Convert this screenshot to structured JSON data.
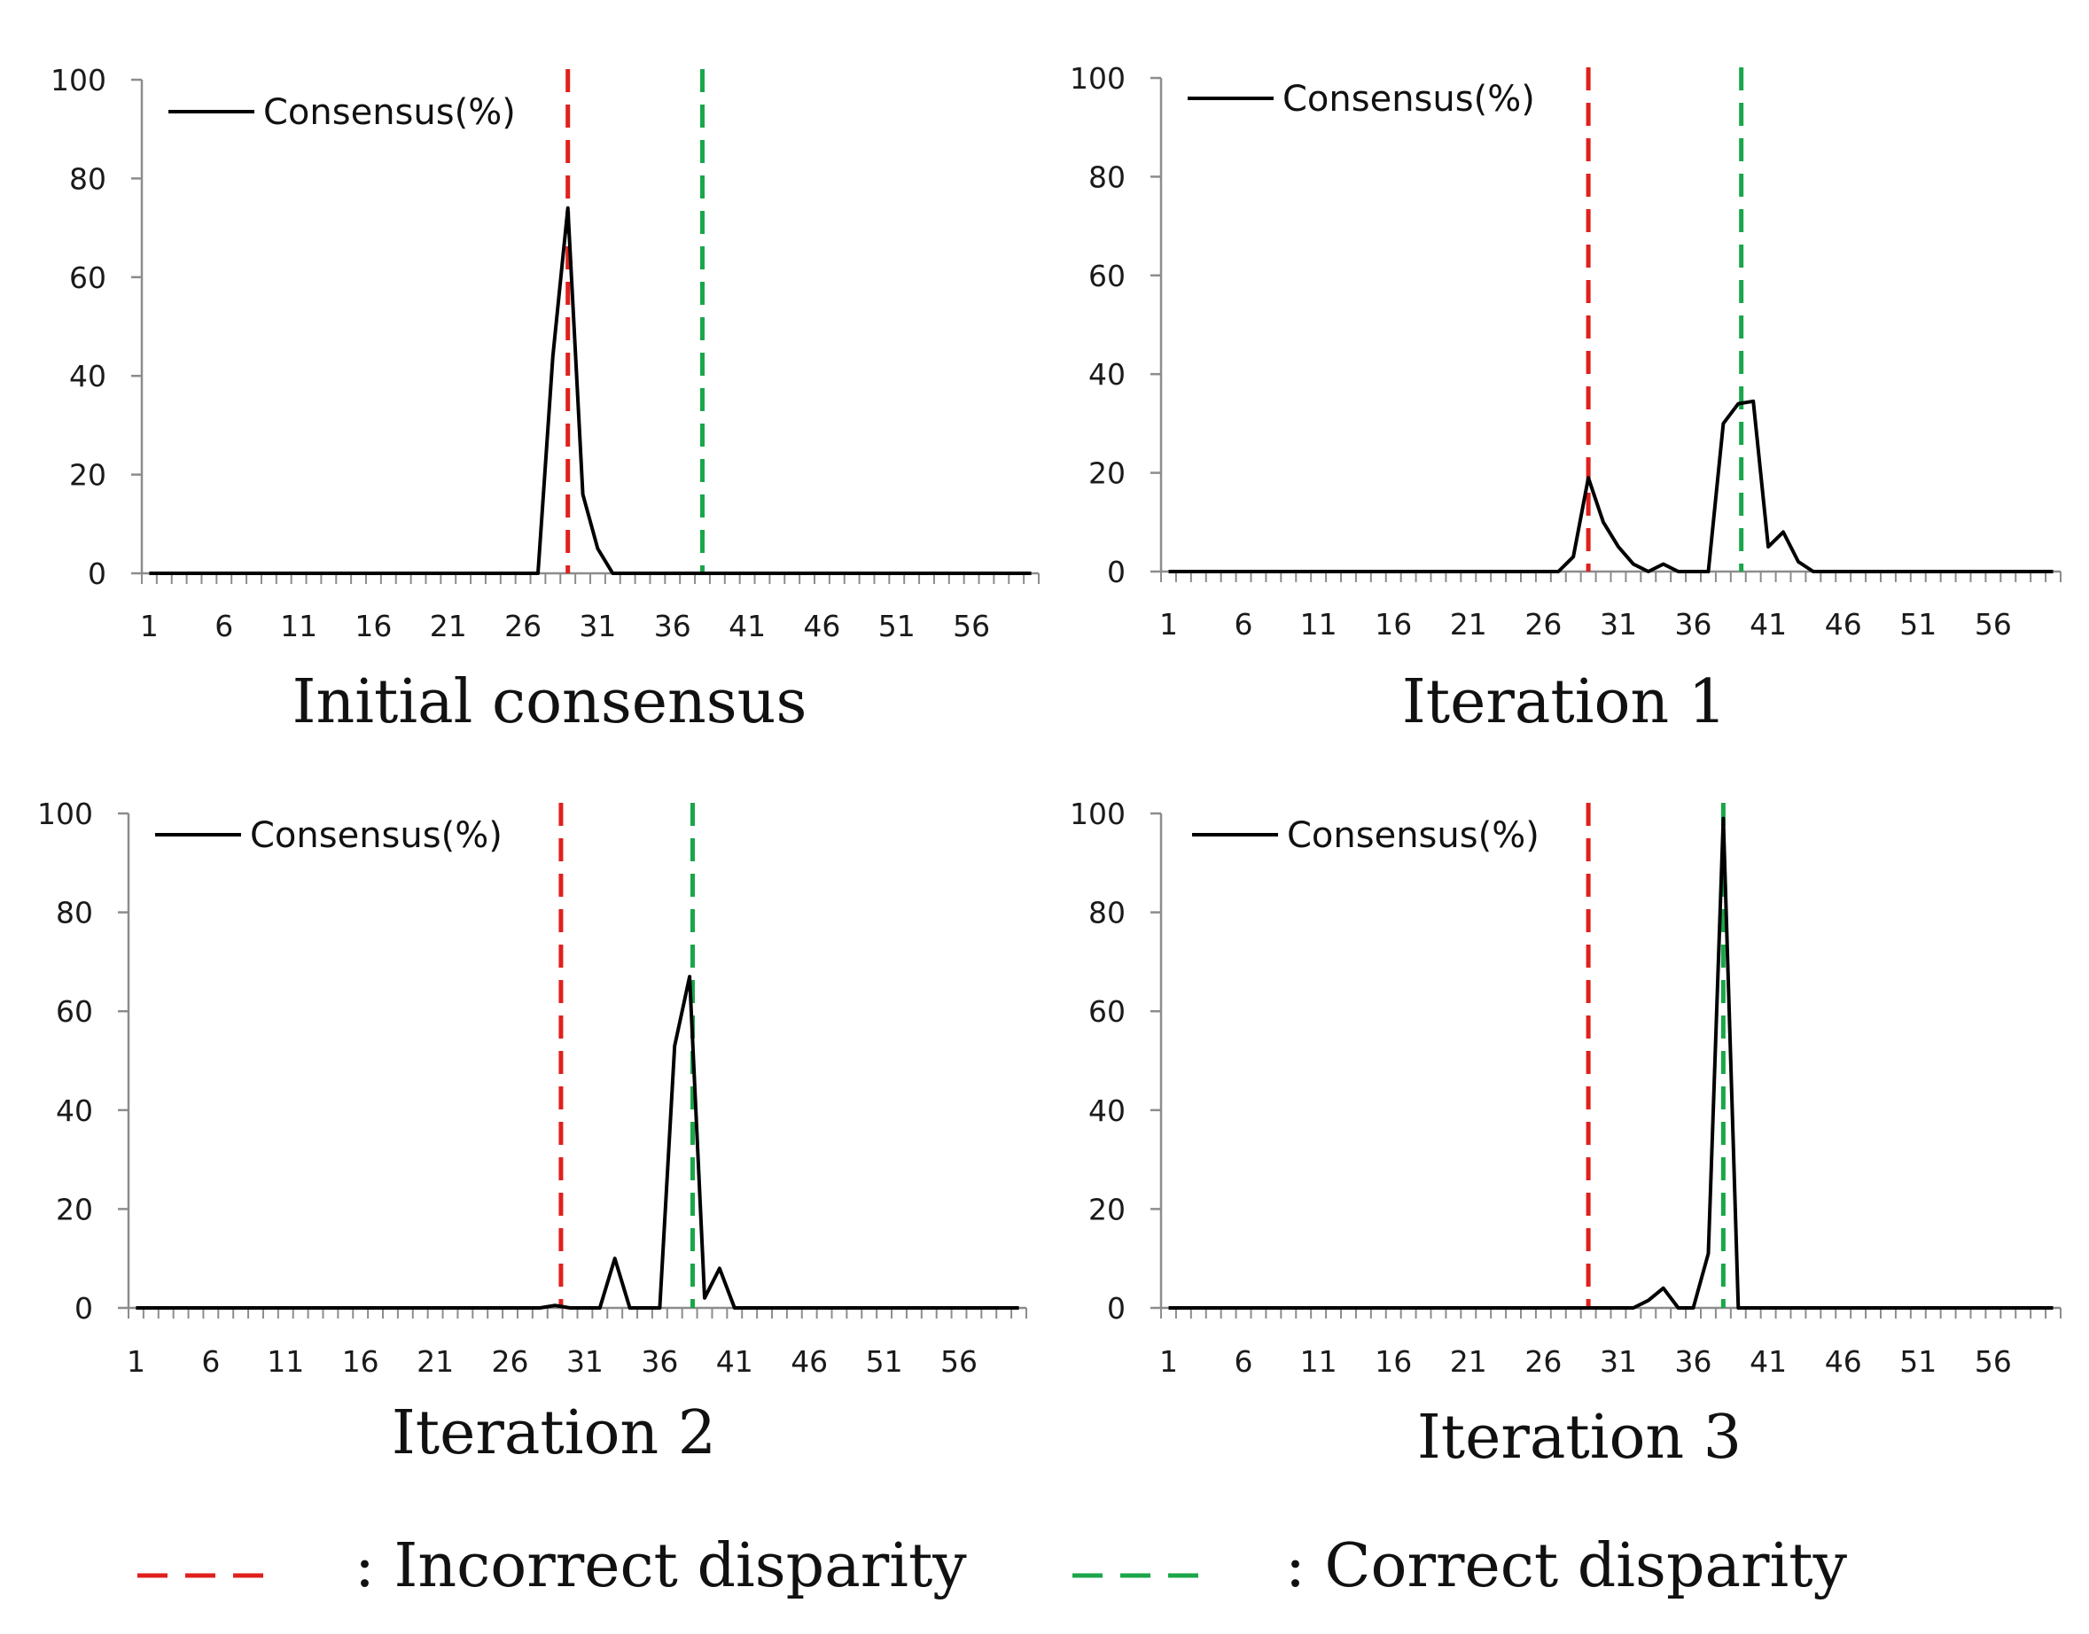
{
  "chart_data": [
    {
      "type": "line",
      "title": "Initial consensus",
      "legend_label": "Consensus(%)",
      "legend_position": "top-left",
      "x_min": 1,
      "x_max": 60,
      "x_tick_labels": [
        "1",
        "6",
        "11",
        "16",
        "21",
        "26",
        "31",
        "36",
        "41",
        "46",
        "51",
        "56"
      ],
      "y_tick_labels": [
        "0",
        "20",
        "40",
        "60",
        "80",
        "100"
      ],
      "ylim": [
        0,
        100
      ],
      "series": [
        {
          "name": "Consensus(%)",
          "x": [
            1,
            27,
            28,
            29,
            30,
            31,
            32,
            60
          ],
          "y": [
            0,
            0,
            44,
            74,
            16,
            5,
            0,
            0
          ]
        }
      ],
      "incorrect_disparity_x": 29,
      "correct_disparity_x": 38
    },
    {
      "type": "line",
      "title": "Iteration 1",
      "legend_label": "Consensus(%)",
      "legend_position": "top-left",
      "x_min": 1,
      "x_max": 60,
      "x_tick_labels": [
        "1",
        "6",
        "11",
        "16",
        "21",
        "26",
        "31",
        "36",
        "41",
        "46",
        "51",
        "56"
      ],
      "y_tick_labels": [
        "0",
        "20",
        "40",
        "60",
        "80",
        "100"
      ],
      "ylim": [
        0,
        100
      ],
      "series": [
        {
          "name": "Consensus(%)",
          "x": [
            1,
            27,
            28,
            29,
            30,
            31,
            32,
            33,
            34,
            35,
            36,
            37,
            38,
            39,
            40,
            41,
            42,
            43,
            44,
            60
          ],
          "y": [
            0,
            0,
            3,
            19,
            10,
            5,
            1.5,
            0,
            1.5,
            0,
            0,
            0,
            30,
            34,
            34.5,
            5,
            8,
            2,
            0,
            0
          ]
        }
      ],
      "incorrect_disparity_x": 29,
      "correct_disparity_x": 39.2
    },
    {
      "type": "line",
      "title": "Iteration 2",
      "legend_label": "Consensus(%)",
      "legend_position": "top-left",
      "x_min": 1,
      "x_max": 60,
      "x_tick_labels": [
        "1",
        "6",
        "11",
        "16",
        "21",
        "26",
        "31",
        "36",
        "41",
        "46",
        "51",
        "56"
      ],
      "y_tick_labels": [
        "0",
        "20",
        "40",
        "60",
        "80",
        "100"
      ],
      "ylim": [
        0,
        100
      ],
      "series": [
        {
          "name": "Consensus(%)",
          "x": [
            1,
            28,
            29,
            30,
            31,
            32,
            33,
            34,
            35,
            36,
            37,
            38,
            39,
            40,
            41,
            60
          ],
          "y": [
            0,
            0,
            0.5,
            0,
            0,
            0,
            10,
            0,
            0,
            0,
            53,
            67,
            2,
            8,
            0,
            0
          ]
        }
      ],
      "incorrect_disparity_x": 29.4,
      "correct_disparity_x": 38.2
    },
    {
      "type": "line",
      "title": "Iteration 3",
      "legend_label": "Consensus(%)",
      "legend_position": "top-left",
      "x_min": 1,
      "x_max": 60,
      "x_tick_labels": [
        "1",
        "6",
        "11",
        "16",
        "21",
        "26",
        "31",
        "36",
        "41",
        "46",
        "51",
        "56"
      ],
      "y_tick_labels": [
        "0",
        "20",
        "40",
        "60",
        "80",
        "100"
      ],
      "ylim": [
        0,
        100
      ],
      "series": [
        {
          "name": "Consensus(%)",
          "x": [
            1,
            32,
            33,
            34,
            35,
            36,
            37,
            38,
            39,
            60
          ],
          "y": [
            0,
            0,
            1.5,
            4,
            0,
            0,
            11,
            99,
            0,
            0
          ]
        }
      ],
      "incorrect_disparity_x": 29,
      "correct_disparity_x": 38
    }
  ],
  "legend": {
    "incorrect_label": ": Incorrect disparity",
    "correct_label": ": Correct disparity"
  },
  "colors": {
    "incorrect": "#e0201c",
    "correct": "#1aa64a",
    "line": "#000000",
    "axis": "#8c8c8c"
  }
}
